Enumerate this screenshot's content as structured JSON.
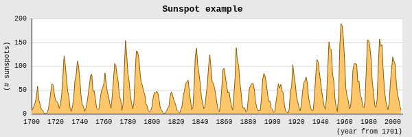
{
  "chart_data": {
    "type": "area",
    "title": "Sunspot example",
    "x_label": "(year from 1701)",
    "y_label": "(# sunspots)",
    "x": [
      1700,
      1701,
      1702,
      1703,
      1704,
      1705,
      1706,
      1707,
      1708,
      1709,
      1710,
      1711,
      1712,
      1713,
      1714,
      1715,
      1716,
      1717,
      1718,
      1719,
      1720,
      1721,
      1722,
      1723,
      1724,
      1725,
      1726,
      1727,
      1728,
      1729,
      1730,
      1731,
      1732,
      1733,
      1734,
      1735,
      1736,
      1737,
      1738,
      1739,
      1740,
      1741,
      1742,
      1743,
      1744,
      1745,
      1746,
      1747,
      1748,
      1749,
      1750,
      1751,
      1752,
      1753,
      1754,
      1755,
      1756,
      1757,
      1758,
      1759,
      1760,
      1761,
      1762,
      1763,
      1764,
      1765,
      1766,
      1767,
      1768,
      1769,
      1770,
      1771,
      1772,
      1773,
      1774,
      1775,
      1776,
      1777,
      1778,
      1779,
      1780,
      1781,
      1782,
      1783,
      1784,
      1785,
      1786,
      1787,
      1788,
      1789,
      1790,
      1791,
      1792,
      1793,
      1794,
      1795,
      1796,
      1797,
      1798,
      1799,
      1800,
      1801,
      1802,
      1803,
      1804,
      1805,
      1806,
      1807,
      1808,
      1809,
      1810,
      1811,
      1812,
      1813,
      1814,
      1815,
      1816,
      1817,
      1818,
      1819,
      1820,
      1821,
      1822,
      1823,
      1824,
      1825,
      1826,
      1827,
      1828,
      1829,
      1830,
      1831,
      1832,
      1833,
      1834,
      1835,
      1836,
      1837,
      1838,
      1839,
      1840,
      1841,
      1842,
      1843,
      1844,
      1845,
      1846,
      1847,
      1848,
      1849,
      1850,
      1851,
      1852,
      1853,
      1854,
      1855,
      1856,
      1857,
      1858,
      1859,
      1860,
      1861,
      1862,
      1863,
      1864,
      1865,
      1866,
      1867,
      1868,
      1869,
      1870,
      1871,
      1872,
      1873,
      1874,
      1875,
      1876,
      1877,
      1878,
      1879,
      1880,
      1881,
      1882,
      1883,
      1884,
      1885,
      1886,
      1887,
      1888,
      1889,
      1890,
      1891,
      1892,
      1893,
      1894,
      1895,
      1896,
      1897,
      1898,
      1899,
      1900,
      1901,
      1902,
      1903,
      1904,
      1905,
      1906,
      1907,
      1908,
      1909,
      1910,
      1911,
      1912,
      1913,
      1914,
      1915,
      1916,
      1917,
      1918,
      1919,
      1920,
      1921,
      1922,
      1923,
      1924,
      1925,
      1926,
      1927,
      1928,
      1929,
      1930,
      1931,
      1932,
      1933,
      1934,
      1935,
      1936,
      1937,
      1938,
      1939,
      1940,
      1941,
      1942,
      1943,
      1944,
      1945,
      1946,
      1947,
      1948,
      1949,
      1950,
      1951,
      1952,
      1953,
      1954,
      1955,
      1956,
      1957,
      1958,
      1959,
      1960,
      1961,
      1962,
      1963,
      1964,
      1965,
      1966,
      1967,
      1968,
      1969,
      1970,
      1971,
      1972,
      1973,
      1974,
      1975,
      1976,
      1977,
      1978,
      1979,
      1980,
      1981,
      1982,
      1983,
      1984,
      1985,
      1986,
      1987,
      1988,
      1989,
      1990,
      1991,
      1992,
      1993,
      1994,
      1995,
      1996,
      1997,
      1998,
      1999,
      2000,
      2001,
      2002,
      2003,
      2004,
      2005,
      2006,
      2007
    ],
    "values": [
      5,
      11,
      16,
      23,
      36,
      58,
      29,
      20,
      10,
      8,
      3,
      0,
      0,
      2,
      11,
      27,
      47,
      63,
      60,
      39,
      28,
      26,
      22,
      11,
      21,
      40,
      78,
      122,
      103,
      73,
      47,
      35,
      11,
      5,
      16,
      34,
      70,
      81,
      111,
      101,
      73,
      40,
      20,
      16,
      5,
      11,
      22,
      40,
      60,
      80.9,
      83.4,
      47.7,
      47.8,
      30.7,
      12.2,
      9.6,
      10.2,
      32.4,
      47.6,
      54,
      62.9,
      85.9,
      61.2,
      45.1,
      36.4,
      20.9,
      11.4,
      37.8,
      69.8,
      106.1,
      100.8,
      81.6,
      66.5,
      34.8,
      30.6,
      7,
      19.8,
      92.5,
      154.4,
      125.9,
      84.8,
      68.1,
      38.5,
      22.8,
      10.2,
      24.1,
      82.9,
      132,
      130.9,
      118.1,
      89.9,
      66.6,
      60,
      46.9,
      41,
      21.3,
      16,
      6.4,
      4.1,
      6.8,
      14.5,
      34,
      45,
      43.1,
      47.5,
      42.2,
      28.1,
      10.1,
      8.1,
      2.5,
      0,
      1.4,
      5,
      12.2,
      13.9,
      35.4,
      45.8,
      41,
      30.1,
      23.9,
      15.6,
      6.6,
      4,
      1.8,
      8.5,
      16.6,
      36.3,
      49.6,
      64.2,
      67,
      70.9,
      47.8,
      27.5,
      8.5,
      13.2,
      56.9,
      121.5,
      138.3,
      103.2,
      85.7,
      64.6,
      36.7,
      24.2,
      10.7,
      15,
      40.1,
      61.5,
      98.5,
      124.7,
      96.3,
      66.6,
      64.5,
      54.1,
      39,
      20.6,
      6.7,
      4.3,
      22.7,
      54.8,
      93.8,
      95.8,
      77.2,
      59.1,
      44,
      47,
      30.5,
      16.3,
      7.3,
      37.6,
      74,
      139,
      111.2,
      101.6,
      66.2,
      44.7,
      17,
      11.3,
      12.4,
      3.4,
      6,
      32.3,
      54.3,
      59.7,
      63.7,
      63.5,
      52.2,
      25.4,
      13.1,
      6.8,
      6.3,
      7.1,
      35.6,
      73,
      85.1,
      78,
      64,
      41.8,
      26.2,
      26.7,
      12.1,
      9.5,
      2.7,
      5,
      24.4,
      42,
      63.5,
      53.8,
      62,
      48.5,
      43.9,
      18.6,
      5.7,
      3.6,
      1.4,
      9.6,
      47.4,
      57.1,
      103.9,
      80.6,
      63.6,
      37.6,
      26.1,
      14.2,
      5.8,
      16.7,
      44.3,
      63.9,
      69,
      77.8,
      64.9,
      35.7,
      21.2,
      11.1,
      5.7,
      8.7,
      36.1,
      79.7,
      114.4,
      109.6,
      88.8,
      67.8,
      47.5,
      30.6,
      16.3,
      9.6,
      33.2,
      92.6,
      151.6,
      136.3,
      134.7,
      83.9,
      69.4,
      31.5,
      13.9,
      4.4,
      38,
      141.7,
      190.2,
      184.8,
      159,
      112.3,
      53.9,
      37.6,
      27.9,
      10.2,
      15.1,
      47,
      93.8,
      105.9,
      105.5,
      104.5,
      66.6,
      68.9,
      38,
      34.5,
      15.5,
      12.6,
      27.5,
      92.5,
      155.4,
      154.6,
      140.4,
      115.9,
      66.6,
      45.9,
      17.9,
      13.4,
      29.4,
      100.2,
      157.6,
      142.6,
      145.7,
      94.3,
      54.6,
      29.9,
      17.5,
      8.6,
      21.5,
      64.3,
      93.3,
      119.6,
      111,
      104,
      63.7,
      40.4,
      29.8,
      15.2,
      7.5
    ],
    "color": "#fdc66a",
    "xlim": [
      1700,
      2008
    ],
    "xticks": [
      1700,
      1720,
      1740,
      1760,
      1780,
      1800,
      1820,
      1840,
      1860,
      1880,
      1900,
      1920,
      1940,
      1960,
      1980,
      2000
    ],
    "ylim": [
      0,
      200
    ],
    "yticks": [
      0,
      50,
      100,
      150,
      200
    ],
    "grid": true
  }
}
